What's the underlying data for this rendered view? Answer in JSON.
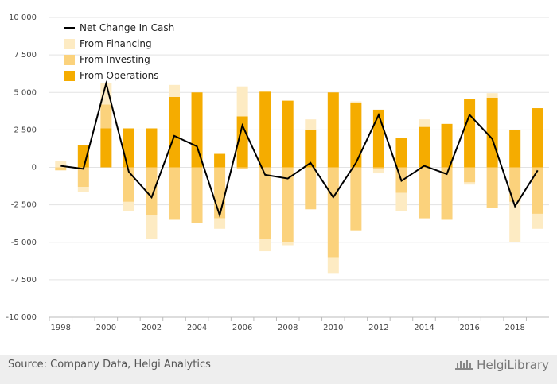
{
  "chart_data": {
    "type": "bar",
    "stacked": true,
    "x": [
      1998,
      1999,
      2000,
      2001,
      2002,
      2003,
      2004,
      2005,
      2006,
      2007,
      2008,
      2009,
      2010,
      2011,
      2012,
      2013,
      2014,
      2015,
      2016,
      2017,
      2018,
      2019
    ],
    "x_tick_labels": [
      "1998",
      "2000",
      "2002",
      "2004",
      "2006",
      "2008",
      "2010",
      "2012",
      "2014",
      "2016",
      "2018"
    ],
    "ylim": [
      -10000,
      10000
    ],
    "y_ticks": [
      -10000,
      -7500,
      -5000,
      -2500,
      0,
      2500,
      5000,
      7500,
      10000
    ],
    "y_tick_labels": [
      "-10 000",
      "-7 500",
      "-5 000",
      "-2 500",
      "0",
      "2 500",
      "5 000",
      "7 500",
      "10 000"
    ],
    "series": [
      {
        "name": "From Operations",
        "color": "#f5ac00",
        "values": [
          0,
          1500,
          2600,
          2600,
          2600,
          4700,
          5000,
          900,
          3400,
          5050,
          4450,
          2500,
          5000,
          4300,
          3850,
          1950,
          2700,
          2900,
          4550,
          4650,
          2500,
          3950
        ]
      },
      {
        "name": "From Investing",
        "color": "#fbd27c",
        "values": [
          -200,
          -1300,
          1600,
          -2300,
          -3200,
          -3500,
          -3700,
          -3400,
          -100,
          -4800,
          -5000,
          -2800,
          -6000,
          -4200,
          -100,
          -1700,
          -3400,
          -3500,
          -1000,
          -2700,
          -2300,
          -3100
        ]
      },
      {
        "name": "From Financing",
        "color": "#fdebc3",
        "values": [
          400,
          -350,
          1450,
          -600,
          -1600,
          800,
          0,
          -700,
          2000,
          -800,
          -200,
          700,
          -1100,
          100,
          -300,
          -1200,
          500,
          0,
          -150,
          300,
          -2700,
          -1000
        ]
      }
    ],
    "line": {
      "name": "Net Change In Cash",
      "color": "#000000",
      "values": [
        100,
        -100,
        5600,
        -300,
        -2000,
        2100,
        1400,
        -3200,
        2800,
        -500,
        -750,
        300,
        -2000,
        300,
        3500,
        -900,
        100,
        -450,
        3500,
        1900,
        -2600,
        -200
      ]
    },
    "legend": "top-left",
    "grid": "horizontal"
  },
  "source": "Source: Company Data, Helgi Analytics",
  "logo_text": "HelgiLibrary"
}
